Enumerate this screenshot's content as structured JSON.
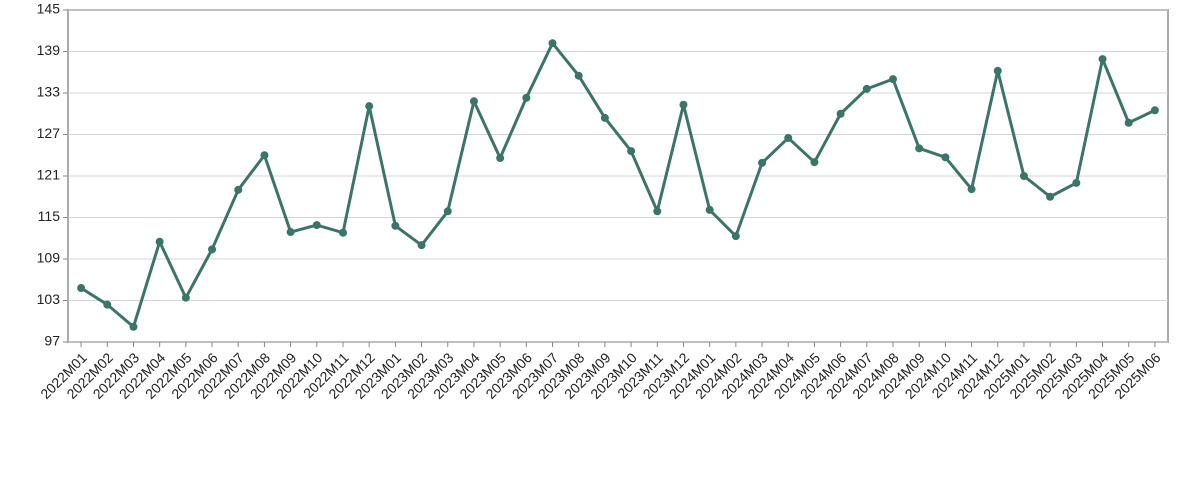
{
  "chart_data": {
    "type": "line",
    "categories": [
      "2022M01",
      "2022M02",
      "2022M03",
      "2022M04",
      "2022M05",
      "2022M06",
      "2022M07",
      "2022M08",
      "2022M09",
      "2022M10",
      "2022M11",
      "2022M12",
      "2023M01",
      "2023M02",
      "2023M03",
      "2023M04",
      "2023M05",
      "2023M06",
      "2023M07",
      "2023M08",
      "2023M09",
      "2023M10",
      "2023M11",
      "2023M12",
      "2024M01",
      "2024M02",
      "2024M03",
      "2024M04",
      "2024M05",
      "2024M06",
      "2024M07",
      "2024M08",
      "2024M09",
      "2024M10",
      "2024M11",
      "2024M12",
      "2025M01",
      "2025M02",
      "2025M03",
      "2025M04",
      "2025M05",
      "2025M06"
    ],
    "values": [
      104.8,
      102.4,
      99.2,
      111.5,
      103.4,
      110.4,
      119.0,
      124.0,
      112.9,
      113.9,
      112.8,
      131.1,
      113.8,
      111.0,
      115.9,
      131.8,
      123.6,
      132.3,
      140.2,
      135.5,
      129.4,
      124.6,
      115.9,
      131.3,
      116.1,
      112.3,
      122.9,
      126.5,
      123.0,
      130.0,
      133.6,
      135.0,
      125.0,
      123.7,
      119.1,
      136.2,
      121.0,
      118.0,
      120.0,
      137.9,
      128.7,
      130.5
    ],
    "color": "#3b7468",
    "ylim": [
      97,
      145
    ],
    "yticks": [
      97,
      103,
      109,
      115,
      121,
      127,
      133,
      139,
      145
    ],
    "grid": true
  }
}
